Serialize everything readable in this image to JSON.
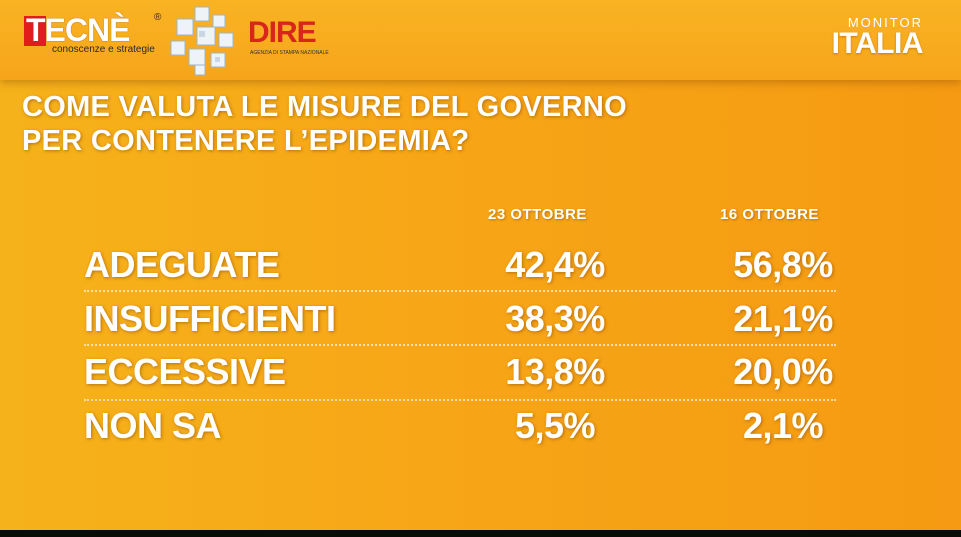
{
  "header": {
    "tecne": {
      "word": "TECNÈ",
      "reg": "®",
      "tagline": "conoscenze e strategie"
    },
    "dire": {
      "word": "DIRE",
      "tagline": "AGENZIA DI STAMPA NAZIONALE"
    },
    "monitor": {
      "small": "MONITOR",
      "big": "ITALIA"
    }
  },
  "question": {
    "line1": "COME VALUTA LE MISURE DEL GOVERNO",
    "line2": "PER CONTENERE L’EPIDEMIA?"
  },
  "colors": {
    "background": "#f7a617",
    "text": "#ffffff",
    "tecne_red": "#e21b1b",
    "dire_red": "#d9261c"
  },
  "chart_data": {
    "type": "table",
    "title": "COME VALUTA LE MISURE DEL GOVERNO PER CONTENERE L’EPIDEMIA?",
    "columns": [
      "23 OTTOBRE",
      "16 OTTOBRE"
    ],
    "rows": [
      {
        "label": "ADEGUATE",
        "values": [
          "42,4%",
          "56,8%"
        ]
      },
      {
        "label": "INSUFFICIENTI",
        "values": [
          "38,3%",
          "21,1%"
        ]
      },
      {
        "label": "ECCESSIVE",
        "values": [
          "13,8%",
          "20,0%"
        ]
      },
      {
        "label": "NON SA",
        "values": [
          "5,5%",
          "2,1%"
        ]
      }
    ],
    "series": [
      {
        "name": "23 OTTOBRE",
        "values": [
          42.4,
          38.3,
          13.8,
          5.5
        ]
      },
      {
        "name": "16 OTTOBRE",
        "values": [
          56.8,
          21.1,
          20.0,
          2.1
        ]
      }
    ],
    "categories": [
      "ADEGUATE",
      "INSUFFICIENTI",
      "ECCESSIVE",
      "NON SA"
    ]
  }
}
